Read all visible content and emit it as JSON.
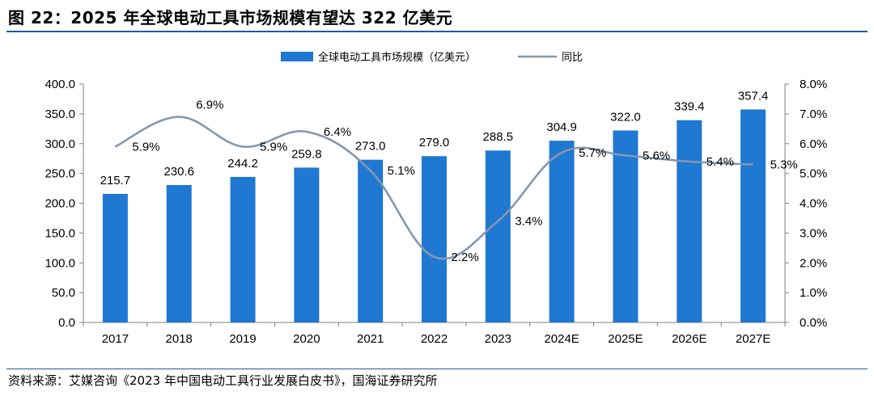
{
  "figure": {
    "title": "图 22：2025 年全球电动工具市场规模有望达 322 亿美元",
    "source": "资料来源：艾媒咨询《2023 年中国电动工具行业发展白皮书》，国海证券研究所"
  },
  "chart_data": {
    "type": "bar",
    "categories": [
      "2017",
      "2018",
      "2019",
      "2020",
      "2021",
      "2022",
      "2023",
      "2024E",
      "2025E",
      "2026E",
      "2027E"
    ],
    "series": [
      {
        "name": "全球电动工具市场规模（亿美元）",
        "type": "bar",
        "axis": "left",
        "color": "#1f78d1",
        "values": [
          215.7,
          230.6,
          244.2,
          259.8,
          273.0,
          279.0,
          288.5,
          304.9,
          322.0,
          339.4,
          357.4
        ],
        "labels": [
          "215.7",
          "230.6",
          "244.2",
          "259.8",
          "273.0",
          "279.0",
          "288.5",
          "304.9",
          "322.0",
          "339.4",
          "357.4"
        ]
      },
      {
        "name": "同比",
        "type": "line",
        "axis": "right",
        "color": "#8497b0",
        "values": [
          5.9,
          6.9,
          5.9,
          6.4,
          5.1,
          2.2,
          3.4,
          5.7,
          5.6,
          5.4,
          5.3
        ],
        "labels": [
          "5.9%",
          "6.9%",
          "5.9%",
          "6.4%",
          "5.1%",
          "2.2%",
          "3.4%",
          "5.7%",
          "5.6%",
          "5.4%",
          "5.3%"
        ]
      }
    ],
    "y_left": {
      "min": 0,
      "max": 400,
      "ticks": [
        "0.0",
        "50.0",
        "100.0",
        "150.0",
        "200.0",
        "250.0",
        "300.0",
        "350.0",
        "400.0"
      ]
    },
    "y_right": {
      "min": 0,
      "max": 8,
      "ticks": [
        "0.0%",
        "1.0%",
        "2.0%",
        "3.0%",
        "4.0%",
        "5.0%",
        "6.0%",
        "7.0%",
        "8.0%"
      ]
    },
    "legend": "top-center",
    "grid": false
  }
}
